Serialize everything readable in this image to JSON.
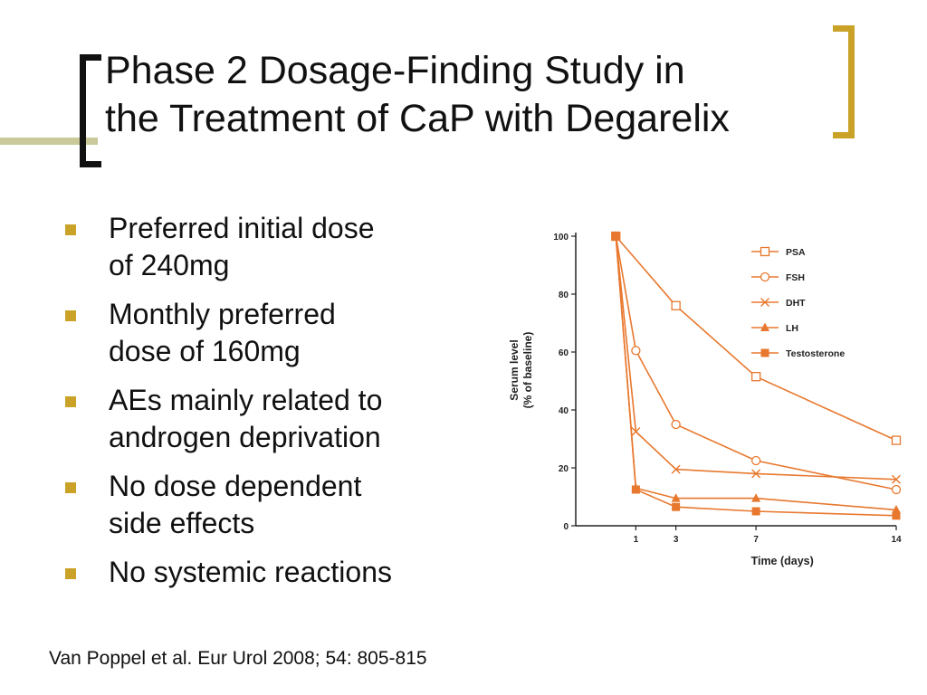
{
  "slide": {
    "title_lines": [
      "Phase 2 Dosage-Finding Study in",
      "the Treatment of CaP with Degarelix"
    ],
    "bullets": [
      [
        "Preferred initial dose",
        "of 240mg"
      ],
      [
        "Monthly preferred",
        "dose of 160mg"
      ],
      [
        "AEs mainly related to",
        "androgen deprivation"
      ],
      [
        "No dose dependent",
        "side effects"
      ],
      [
        "No systemic reactions"
      ]
    ],
    "citation": "Van Poppel et al. Eur Urol 2008; 54: 805-815"
  },
  "colors": {
    "accent": "#c9a227",
    "title_rule": "#c9c99a",
    "series": "#e8782e",
    "axis": "#222222"
  },
  "chart_data": {
    "type": "line",
    "title": "",
    "xlabel": "Time (days)",
    "ylabel_lines": [
      "Serum level",
      "(% of baseline)"
    ],
    "xlim": [
      -2,
      14
    ],
    "ylim": [
      0,
      100
    ],
    "xticks": [
      1,
      3,
      7,
      14
    ],
    "yticks": [
      0,
      20,
      40,
      60,
      80,
      100
    ],
    "grid": false,
    "legend_position": "top-right",
    "series": [
      {
        "name": "PSA",
        "marker": "open-square",
        "x": [
          0,
          3,
          7,
          14
        ],
        "y": [
          100,
          76,
          51.5,
          29.5
        ]
      },
      {
        "name": "FSH",
        "marker": "open-circle",
        "x": [
          0,
          1,
          3,
          7,
          14
        ],
        "y": [
          100,
          60.5,
          35,
          22.5,
          12.5
        ]
      },
      {
        "name": "DHT",
        "marker": "x",
        "x": [
          0,
          1,
          3,
          7,
          14
        ],
        "y": [
          100,
          32.5,
          19.5,
          18,
          16
        ]
      },
      {
        "name": "LH",
        "marker": "filled-triangle",
        "x": [
          0,
          1,
          3,
          7,
          14
        ],
        "y": [
          100,
          13,
          9.5,
          9.5,
          5.5
        ]
      },
      {
        "name": "Testosterone",
        "marker": "filled-square",
        "x": [
          0,
          1,
          3,
          7,
          14
        ],
        "y": [
          100,
          12.5,
          6.5,
          5,
          3.5
        ]
      }
    ]
  }
}
